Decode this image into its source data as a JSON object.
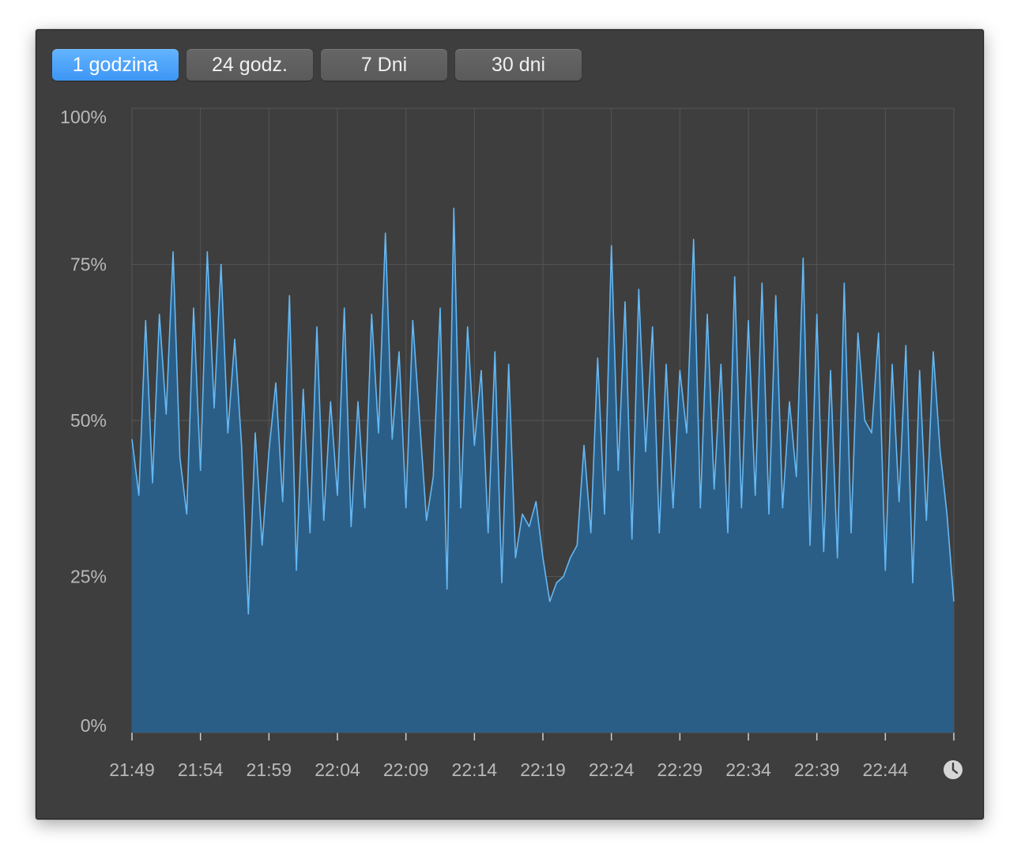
{
  "tabs": [
    {
      "label": "1 godzina",
      "active": true
    },
    {
      "label": "24 godz.",
      "active": false
    },
    {
      "label": "7 Dni",
      "active": false
    },
    {
      "label": "30 dni",
      "active": false
    }
  ],
  "colors": {
    "background": "#3e3e3e",
    "grid": "#555555",
    "line": "#64b8f5",
    "fill": "#2b5e86",
    "active_tab": "#4aa3fb"
  },
  "icons": {
    "history": "clock-icon"
  },
  "chart_data": {
    "type": "area",
    "title": "",
    "xlabel": "",
    "ylabel": "",
    "ylim": [
      0,
      100
    ],
    "grid": true,
    "y_ticks": [
      "0%",
      "25%",
      "50%",
      "75%",
      "100%"
    ],
    "x_ticks": [
      "21:49",
      "21:54",
      "21:59",
      "22:04",
      "22:09",
      "22:14",
      "22:19",
      "22:24",
      "22:29",
      "22:34",
      "22:39",
      "22:44"
    ],
    "x_range_minutes": [
      0,
      60
    ],
    "series": [
      {
        "name": "",
        "x": [
          0,
          0.5,
          1.0,
          1.5,
          2.0,
          2.5,
          3.0,
          3.5,
          4.0,
          4.5,
          5.0,
          5.5,
          6.0,
          6.5,
          7.0,
          7.5,
          8.0,
          8.5,
          9.0,
          9.5,
          10.0,
          10.5,
          11.0,
          11.5,
          12.0,
          12.5,
          13.0,
          13.5,
          14.0,
          14.5,
          15.0,
          15.5,
          16.0,
          16.5,
          17.0,
          17.5,
          18.0,
          18.5,
          19.0,
          19.5,
          20.0,
          20.5,
          21.0,
          21.5,
          22.0,
          22.5,
          23.0,
          23.5,
          24.0,
          24.5,
          25.0,
          25.5,
          26.0,
          26.5,
          27.0,
          27.5,
          28.0,
          28.5,
          29.0,
          29.5,
          30.0,
          30.5,
          31.0,
          31.5,
          32.0,
          32.5,
          33.0,
          33.5,
          34.0,
          34.5,
          35.0,
          35.5,
          36.0,
          36.5,
          37.0,
          37.5,
          38.0,
          38.5,
          39.0,
          39.5,
          40.0,
          40.5,
          41.0,
          41.5,
          42.0,
          42.5,
          43.0,
          43.5,
          44.0,
          44.5,
          45.0,
          45.5,
          46.0,
          46.5,
          47.0,
          47.5,
          48.0,
          48.5,
          49.0,
          49.5,
          50.0,
          50.5,
          51.0,
          51.5,
          52.0,
          52.5,
          53.0,
          53.5,
          54.0,
          54.5,
          55.0,
          55.5,
          56.0,
          56.5,
          57.0,
          57.5,
          58.0,
          58.5,
          59.0,
          59.5,
          60.0
        ],
        "values": [
          47,
          38,
          66,
          40,
          67,
          51,
          77,
          44,
          35,
          68,
          42,
          77,
          52,
          75,
          48,
          63,
          46,
          19,
          48,
          30,
          45,
          56,
          37,
          70,
          26,
          55,
          32,
          65,
          34,
          53,
          38,
          68,
          33,
          53,
          36,
          67,
          48,
          80,
          47,
          61,
          36,
          66,
          50,
          34,
          41,
          68,
          23,
          84,
          36,
          65,
          46,
          58,
          32,
          61,
          24,
          59,
          28,
          35,
          33,
          37,
          28,
          21,
          24,
          25,
          28,
          30,
          46,
          32,
          60,
          35,
          78,
          42,
          69,
          31,
          71,
          45,
          65,
          32,
          59,
          36,
          58,
          48,
          79,
          36,
          67,
          39,
          59,
          32,
          73,
          36,
          66,
          38,
          72,
          35,
          70,
          36,
          53,
          41,
          76,
          30,
          67,
          29,
          58,
          28,
          72,
          32,
          64,
          50,
          48,
          64,
          26,
          59,
          37,
          62,
          24,
          58,
          34,
          61,
          45,
          35,
          21
        ]
      }
    ]
  }
}
